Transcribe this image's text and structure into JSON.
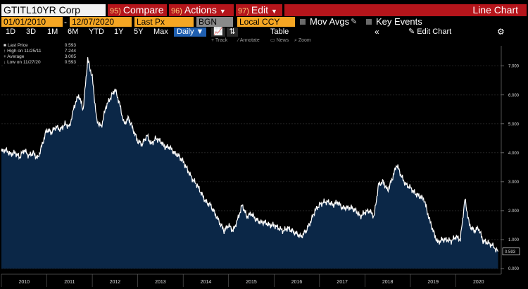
{
  "toolbar": {
    "ticker": "GTITL10YR Corp",
    "compare": {
      "num": "95)",
      "label": "Compare"
    },
    "actions": {
      "num": "96)",
      "label": "Actions"
    },
    "edit": {
      "num": "97)",
      "label": "Edit"
    },
    "chart_title": "Line Chart"
  },
  "params": {
    "start_date": "01/01/2010",
    "end_date": "12/07/2020",
    "field": "Last Px",
    "source": "BGN",
    "currency": "Local CCY",
    "mov_avgs": "Mov Avgs",
    "key_events": "Key Events"
  },
  "periods": [
    "1D",
    "3D",
    "1M",
    "6M",
    "YTD",
    "1Y",
    "5Y",
    "Max"
  ],
  "frequency": "Daily",
  "table_label": "Table",
  "collapse_glyph": "«",
  "edit_chart": "Edit Chart",
  "tools": {
    "track": "Track",
    "annotate": "Annotate",
    "news": "News",
    "zoom": "Zoom"
  },
  "legend": {
    "last_price_label": "Last Price",
    "last_price_value": "0.593",
    "high_label": "High on 11/25/11",
    "high_value": "7.244",
    "average_label": "Average",
    "average_value": "3.005",
    "low_label": "Low on 11/27/20",
    "low_value": "0.593"
  },
  "colors": {
    "area": "#0b2747",
    "line": "#ffffff",
    "brand_red": "#b5151b",
    "field_orange": "#f5a623"
  },
  "chart_data": {
    "type": "area",
    "x": [
      2010.0,
      2010.1,
      2010.2,
      2010.3,
      2010.4,
      2010.5,
      2010.6,
      2010.7,
      2010.8,
      2010.9,
      2011.0,
      2011.1,
      2011.2,
      2011.3,
      2011.4,
      2011.5,
      2011.6,
      2011.7,
      2011.8,
      2011.9,
      2012.0,
      2012.1,
      2012.2,
      2012.3,
      2012.4,
      2012.5,
      2012.6,
      2012.7,
      2012.8,
      2012.9,
      2013.0,
      2013.1,
      2013.2,
      2013.3,
      2013.4,
      2013.5,
      2013.6,
      2013.7,
      2013.8,
      2013.9,
      2014.0,
      2014.1,
      2014.2,
      2014.3,
      2014.4,
      2014.5,
      2014.6,
      2014.7,
      2014.8,
      2014.9,
      2015.0,
      2015.1,
      2015.2,
      2015.3,
      2015.4,
      2015.5,
      2015.6,
      2015.7,
      2015.8,
      2015.9,
      2016.0,
      2016.1,
      2016.2,
      2016.3,
      2016.4,
      2016.5,
      2016.6,
      2016.7,
      2016.8,
      2016.9,
      2017.0,
      2017.1,
      2017.2,
      2017.3,
      2017.4,
      2017.5,
      2017.6,
      2017.7,
      2017.8,
      2017.9,
      2018.0,
      2018.1,
      2018.2,
      2018.3,
      2018.4,
      2018.5,
      2018.6,
      2018.7,
      2018.8,
      2018.9,
      2019.0,
      2019.1,
      2019.2,
      2019.3,
      2019.4,
      2019.5,
      2019.6,
      2019.7,
      2019.8,
      2019.9,
      2020.0,
      2020.1,
      2020.2,
      2020.3,
      2020.4,
      2020.5,
      2020.6,
      2020.7,
      2020.8,
      2020.93
    ],
    "y": [
      4.05,
      4.1,
      3.95,
      4.0,
      3.85,
      4.1,
      3.9,
      4.0,
      3.8,
      4.3,
      4.8,
      4.7,
      4.9,
      4.8,
      5.0,
      4.9,
      5.6,
      6.0,
      5.5,
      7.24,
      6.6,
      5.1,
      4.9,
      5.6,
      5.9,
      6.2,
      5.7,
      5.0,
      5.2,
      4.8,
      4.4,
      4.3,
      4.6,
      4.3,
      4.5,
      4.4,
      4.2,
      4.2,
      4.0,
      3.9,
      3.7,
      3.4,
      3.1,
      2.9,
      2.6,
      2.3,
      2.2,
      1.9,
      1.6,
      1.3,
      1.5,
      1.3,
      1.7,
      2.2,
      1.8,
      1.9,
      1.7,
      1.6,
      1.6,
      1.5,
      1.5,
      1.4,
      1.3,
      1.4,
      1.3,
      1.2,
      1.1,
      1.3,
      1.6,
      2.0,
      2.2,
      2.3,
      2.3,
      2.2,
      2.3,
      2.1,
      2.1,
      2.1,
      2.0,
      1.8,
      1.95,
      2.0,
      1.8,
      2.9,
      3.0,
      2.7,
      3.1,
      3.6,
      3.2,
      2.9,
      2.8,
      2.6,
      2.5,
      2.4,
      1.8,
      1.3,
      0.9,
      1.0,
      1.0,
      0.95,
      1.1,
      1.0,
      2.4,
      1.5,
      1.3,
      1.4,
      0.95,
      0.9,
      0.8,
      0.59
    ],
    "xlabels": [
      "2010",
      "2011",
      "2012",
      "2013",
      "2014",
      "2015",
      "2016",
      "2017",
      "2018",
      "2019",
      "2020"
    ],
    "yticks": [
      "0.000",
      "1.000",
      "2.000",
      "3.000",
      "4.000",
      "5.000",
      "6.000",
      "7.000"
    ],
    "ylim": [
      0,
      7.7
    ],
    "last_value_label": "0.593",
    "grid": true
  }
}
